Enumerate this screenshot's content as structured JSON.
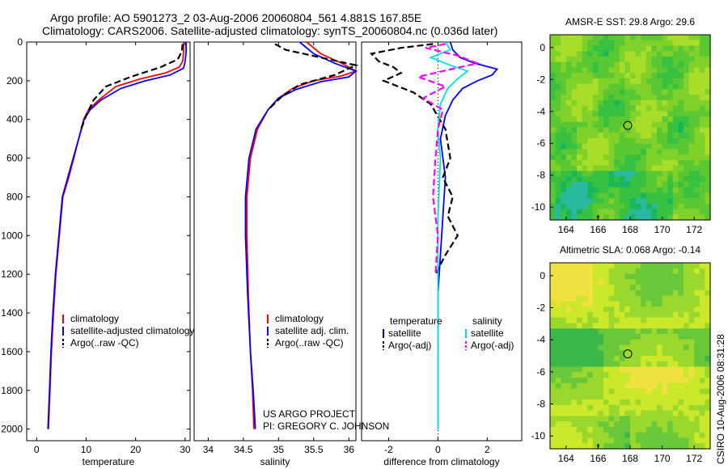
{
  "header": {
    "title_line1": "Argo profile: AO 5901273_2 03-Aug-2006 20060804_561 4.881S 167.85E",
    "title_line2": "Climatology: CARS2006. Satellite-adjusted climatology: synTS_20060804.nc (0.036d later)"
  },
  "footer": {
    "project": "US ARGO PROJECT",
    "pi": "PI: GREGORY C. JOHNSON",
    "timestamp": "CSIRO 10-Aug-2006 08:31:28"
  },
  "colors": {
    "climatology": "#ff0000",
    "satellite": "#0000ff",
    "argo": "#000000",
    "sat_diff": "#00e0e0",
    "argo_diff_sal": "#ff00ff"
  },
  "chart_data": [
    {
      "type": "line",
      "xlabel": "temperature",
      "ylabel": "",
      "xlim": [
        -2,
        31
      ],
      "ylim": [
        2060,
        0
      ],
      "xticks": [
        0,
        10,
        20,
        30
      ],
      "yticks": [
        0,
        200,
        400,
        600,
        800,
        1000,
        1200,
        1400,
        1600,
        1800,
        2000
      ],
      "legend": [
        "climatology",
        "satellite-adjusted climatology",
        "Argo(..raw -QC)"
      ],
      "legend_location": "lower-right",
      "series": [
        {
          "name": "climatology",
          "color": "#ff0000",
          "style": "solid",
          "x": [
            29.7,
            29.7,
            29.5,
            28.8,
            26,
            21,
            16,
            12.5,
            10.5,
            9.5,
            8.5,
            7.5,
            6.5,
            5.3,
            4.6,
            3.9,
            3.4,
            3,
            2.7,
            2.4
          ],
          "y": [
            0,
            50,
            100,
            130,
            160,
            190,
            230,
            300,
            350,
            400,
            500,
            600,
            700,
            800,
            1000,
            1200,
            1400,
            1600,
            1800,
            2000
          ]
        },
        {
          "name": "satellite-adjusted climatology",
          "color": "#0000ff",
          "style": "solid",
          "x": [
            30.2,
            30.2,
            30,
            29.7,
            27,
            22,
            17,
            13,
            10.8,
            9.6,
            8.5,
            7.4,
            6.3,
            5.2,
            4.5,
            3.8,
            3.3,
            2.9,
            2.6,
            2.3
          ],
          "y": [
            0,
            50,
            100,
            135,
            170,
            200,
            240,
            300,
            350,
            400,
            500,
            600,
            700,
            800,
            1000,
            1200,
            1400,
            1600,
            1800,
            2000
          ]
        },
        {
          "name": "Argo(..raw -QC)",
          "color": "#000000",
          "style": "dashed",
          "x": [
            29.5,
            29.3,
            28.5,
            25,
            19,
            14,
            11.5,
            10,
            9
          ],
          "y": [
            10,
            50,
            90,
            130,
            180,
            230,
            300,
            380,
            450
          ]
        }
      ]
    },
    {
      "type": "line",
      "xlabel": "salinity",
      "ylabel": "",
      "xlim": [
        33.8,
        36.1
      ],
      "ylim": [
        2060,
        0
      ],
      "xticks": [
        34,
        34.5,
        35,
        35.5,
        36
      ],
      "xticklabels": [
        "34",
        "34.5",
        "35",
        "35.5",
        "36"
      ],
      "legend": [
        "climatology",
        "satellite adj. clim.",
        "Argo(..raw -QC)"
      ],
      "legend_location": "lower-right",
      "series": [
        {
          "name": "climatology",
          "color": "#ff0000",
          "style": "solid",
          "x": [
            35.4,
            35.6,
            35.9,
            36.1,
            35.9,
            35.5,
            35.2,
            35,
            34.85,
            34.7,
            34.6,
            34.55,
            34.55,
            34.57,
            34.6,
            34.63,
            34.65
          ],
          "y": [
            0,
            60,
            110,
            150,
            175,
            200,
            240,
            290,
            350,
            450,
            600,
            800,
            1000,
            1300,
            1600,
            1800,
            2000
          ]
        },
        {
          "name": "satellite adj. clim.",
          "color": "#0000ff",
          "style": "solid",
          "x": [
            35.3,
            35.5,
            35.8,
            36.1,
            36,
            35.6,
            35.25,
            35,
            34.85,
            34.68,
            34.58,
            34.53,
            34.53,
            34.56,
            34.6,
            34.64,
            34.67
          ],
          "y": [
            0,
            60,
            110,
            150,
            180,
            205,
            245,
            290,
            350,
            450,
            600,
            800,
            1000,
            1300,
            1600,
            1800,
            2000
          ]
        },
        {
          "name": "Argo(..raw -QC)",
          "color": "#000000",
          "style": "dashed",
          "x": [
            34.95,
            35.1,
            35.6,
            36.1,
            35.8,
            35.3,
            35.05,
            34.85
          ],
          "y": [
            10,
            40,
            80,
            120,
            170,
            220,
            280,
            350
          ]
        }
      ]
    },
    {
      "type": "line",
      "xlabel": "difference from climatology",
      "ylabel": "",
      "xlim": [
        -3.1,
        3.4
      ],
      "ylim": [
        2060,
        0
      ],
      "xticks": [
        -2,
        0,
        2
      ],
      "legend": [
        "temperature",
        "satellite",
        "Argo(-adj)",
        "salinity",
        "satellite",
        "Argo(-adj)"
      ],
      "legend_location": "lower",
      "series": [
        {
          "name": "temperature satellite",
          "color": "#0000ff",
          "style": "solid",
          "x": [
            0.5,
            0.6,
            0.9,
            1.5,
            2.4,
            2.2,
            1.6,
            1,
            0.6,
            0.3,
            0.1,
            0.3,
            0.2,
            0.1,
            0,
            0,
            0,
            0
          ],
          "y": [
            0,
            40,
            80,
            110,
            140,
            170,
            200,
            240,
            300,
            380,
            500,
            700,
            900,
            1100,
            1300,
            1500,
            1800,
            2000
          ]
        },
        {
          "name": "temperature Argo(-adj)",
          "color": "#000000",
          "style": "dashed",
          "x": [
            -0.2,
            -1.5,
            -2.7,
            -2.4,
            -1.8,
            -1.5,
            -2.2,
            -1,
            -0.3,
            0.3,
            0.5,
            0.2,
            0.6,
            0.4,
            0.8,
            0.3,
            -0.1
          ],
          "y": [
            10,
            30,
            60,
            100,
            130,
            160,
            200,
            260,
            320,
            450,
            600,
            700,
            800,
            900,
            1000,
            1100,
            1200
          ]
        },
        {
          "name": "salinity satellite",
          "color": "#00e0e0",
          "style": "solid",
          "x": [
            0.3,
            0.5,
            -0.3,
            0.5,
            1.2,
            0.8,
            0.4,
            0.1,
            0,
            0.1,
            0,
            0,
            0,
            0
          ],
          "y": [
            0,
            40,
            80,
            120,
            150,
            190,
            240,
            320,
            450,
            600,
            900,
            1200,
            1600,
            2000
          ]
        },
        {
          "name": "salinity Argo(-adj)",
          "color": "#ff00ff",
          "style": "dashed",
          "x": [
            0.3,
            -0.5,
            0.8,
            1.6,
            0.2,
            -0.8,
            0.3,
            -0.6,
            0.2,
            0,
            -0.1,
            -0.2,
            0,
            -0.1
          ],
          "y": [
            10,
            30,
            70,
            110,
            150,
            180,
            230,
            290,
            350,
            450,
            600,
            800,
            1000,
            1200
          ]
        }
      ]
    },
    {
      "type": "heatmap",
      "title": "AMSR-E SST: 29.8 Argo: 29.6",
      "xlim": [
        163,
        173
      ],
      "ylim": [
        -10.8,
        0.8
      ],
      "xticks": [
        164,
        166,
        168,
        170,
        172
      ],
      "yticks": [
        0,
        -2,
        -4,
        -6,
        -8,
        -10
      ],
      "marker": {
        "lon": 167.85,
        "lat": -4.881
      },
      "palette": [
        "#18b85a",
        "#38c040",
        "#5ac832",
        "#80d22a",
        "#a8de2a",
        "#2ab8a0"
      ]
    },
    {
      "type": "heatmap",
      "title": "Altimetric SLA: 0.068 Argo: -0.14",
      "xlim": [
        163,
        173
      ],
      "ylim": [
        -10.8,
        0.8
      ],
      "xticks": [
        164,
        166,
        168,
        170,
        172
      ],
      "yticks": [
        0,
        -2,
        -4,
        -6,
        -8,
        -10
      ],
      "marker": {
        "lon": 167.85,
        "lat": -4.881
      },
      "palette": [
        "#3ab84a",
        "#68c83a",
        "#9ad82e",
        "#cce82a",
        "#f0e040",
        "#f6b83c"
      ]
    }
  ]
}
